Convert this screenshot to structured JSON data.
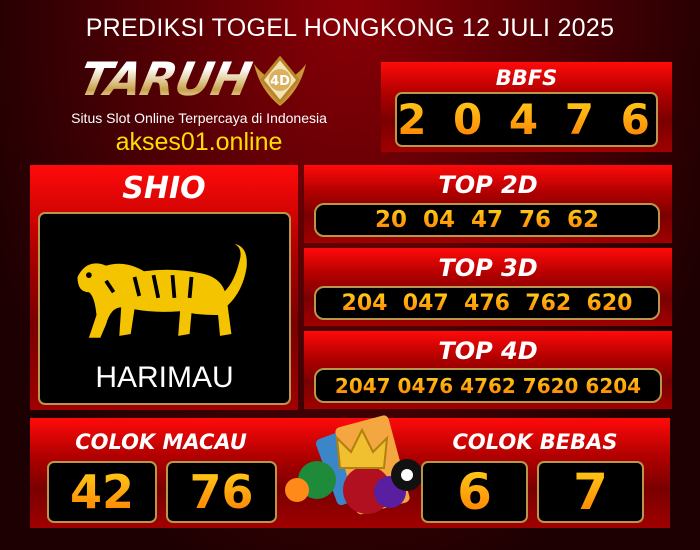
{
  "title": "PREDIKSI TOGEL HONGKONG 12 JULI 2025",
  "brand": {
    "logo": "TARUH 4D",
    "tagline": "Situs Slot Online Terpercaya di Indonesia",
    "url": "akses01.online"
  },
  "bbfs": {
    "label": "BBFS",
    "value": "2 0 4 7 6"
  },
  "shio": {
    "label": "SHIO",
    "name": "HARIMAU",
    "icon": "tiger-icon"
  },
  "top2d": {
    "label": "TOP 2D",
    "value": "20  04  47  76  62"
  },
  "top3d": {
    "label": "TOP 3D",
    "value": "204  047  476  762  620"
  },
  "top4d": {
    "label": "TOP 4D",
    "value": "2047 0476 4762 7620 6204"
  },
  "colok_macau": {
    "label": "COLOK MACAU",
    "values": [
      "42",
      "76"
    ]
  },
  "colok_bebas": {
    "label": "COLOK BEBAS",
    "values": [
      "6",
      "7"
    ]
  },
  "colors": {
    "panel_red": "#ff0a0a",
    "number_gold": "#ffd21a",
    "number_orange": "#ff7a00",
    "border_gold": "#b8974a"
  }
}
